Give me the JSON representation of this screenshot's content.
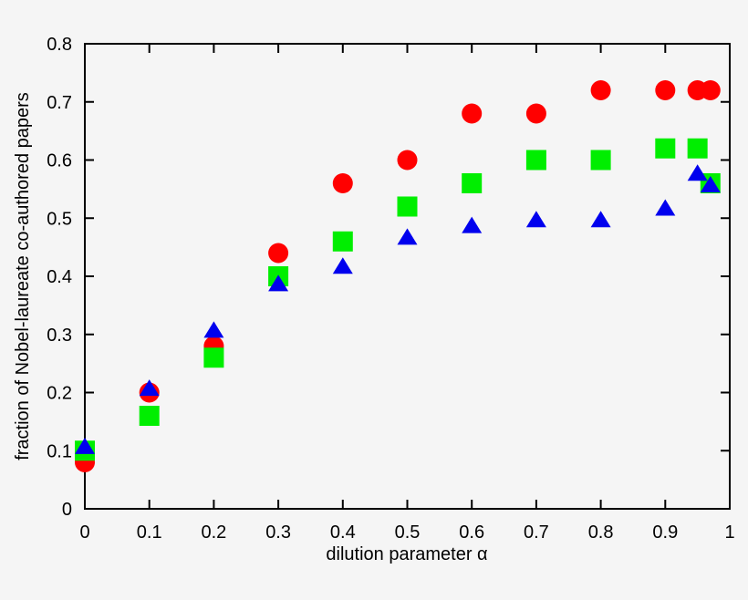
{
  "chart_data": {
    "type": "scatter",
    "title": "",
    "xlabel": "dilution parameter α",
    "ylabel": "fraction of Nobel-laureate co-authored papers",
    "xlim": [
      0,
      1
    ],
    "ylim": [
      0,
      0.8
    ],
    "x_ticks": [
      "0",
      "0.1",
      "0.2",
      "0.3",
      "0.4",
      "0.5",
      "0.6",
      "0.7",
      "0.8",
      "0.9",
      "1"
    ],
    "y_ticks": [
      "0",
      "0.1",
      "0.2",
      "0.3",
      "0.4",
      "0.5",
      "0.6",
      "0.7",
      "0.8"
    ],
    "grid": false,
    "legend": "none",
    "series": [
      {
        "marker": "circle",
        "color": "#ff0000",
        "x": [
          0,
          0.1,
          0.2,
          0.3,
          0.4,
          0.5,
          0.6,
          0.7,
          0.8,
          0.9,
          0.95,
          0.97
        ],
        "y": [
          0.08,
          0.2,
          0.28,
          0.44,
          0.56,
          0.6,
          0.68,
          0.68,
          0.72,
          0.72,
          0.72,
          0.72
        ]
      },
      {
        "marker": "square",
        "color": "#00ee00",
        "x": [
          0,
          0.1,
          0.2,
          0.3,
          0.4,
          0.5,
          0.6,
          0.7,
          0.8,
          0.9,
          0.95,
          0.97
        ],
        "y": [
          0.1,
          0.16,
          0.26,
          0.4,
          0.46,
          0.52,
          0.56,
          0.6,
          0.6,
          0.62,
          0.62,
          0.56
        ]
      },
      {
        "marker": "triangle",
        "color": "#0000ee",
        "x": [
          0,
          0.1,
          0.2,
          0.3,
          0.4,
          0.5,
          0.6,
          0.7,
          0.8,
          0.9,
          0.95,
          0.97
        ],
        "y": [
          0.105,
          0.205,
          0.305,
          0.385,
          0.415,
          0.465,
          0.485,
          0.495,
          0.495,
          0.515,
          0.575,
          0.555
        ]
      }
    ]
  }
}
